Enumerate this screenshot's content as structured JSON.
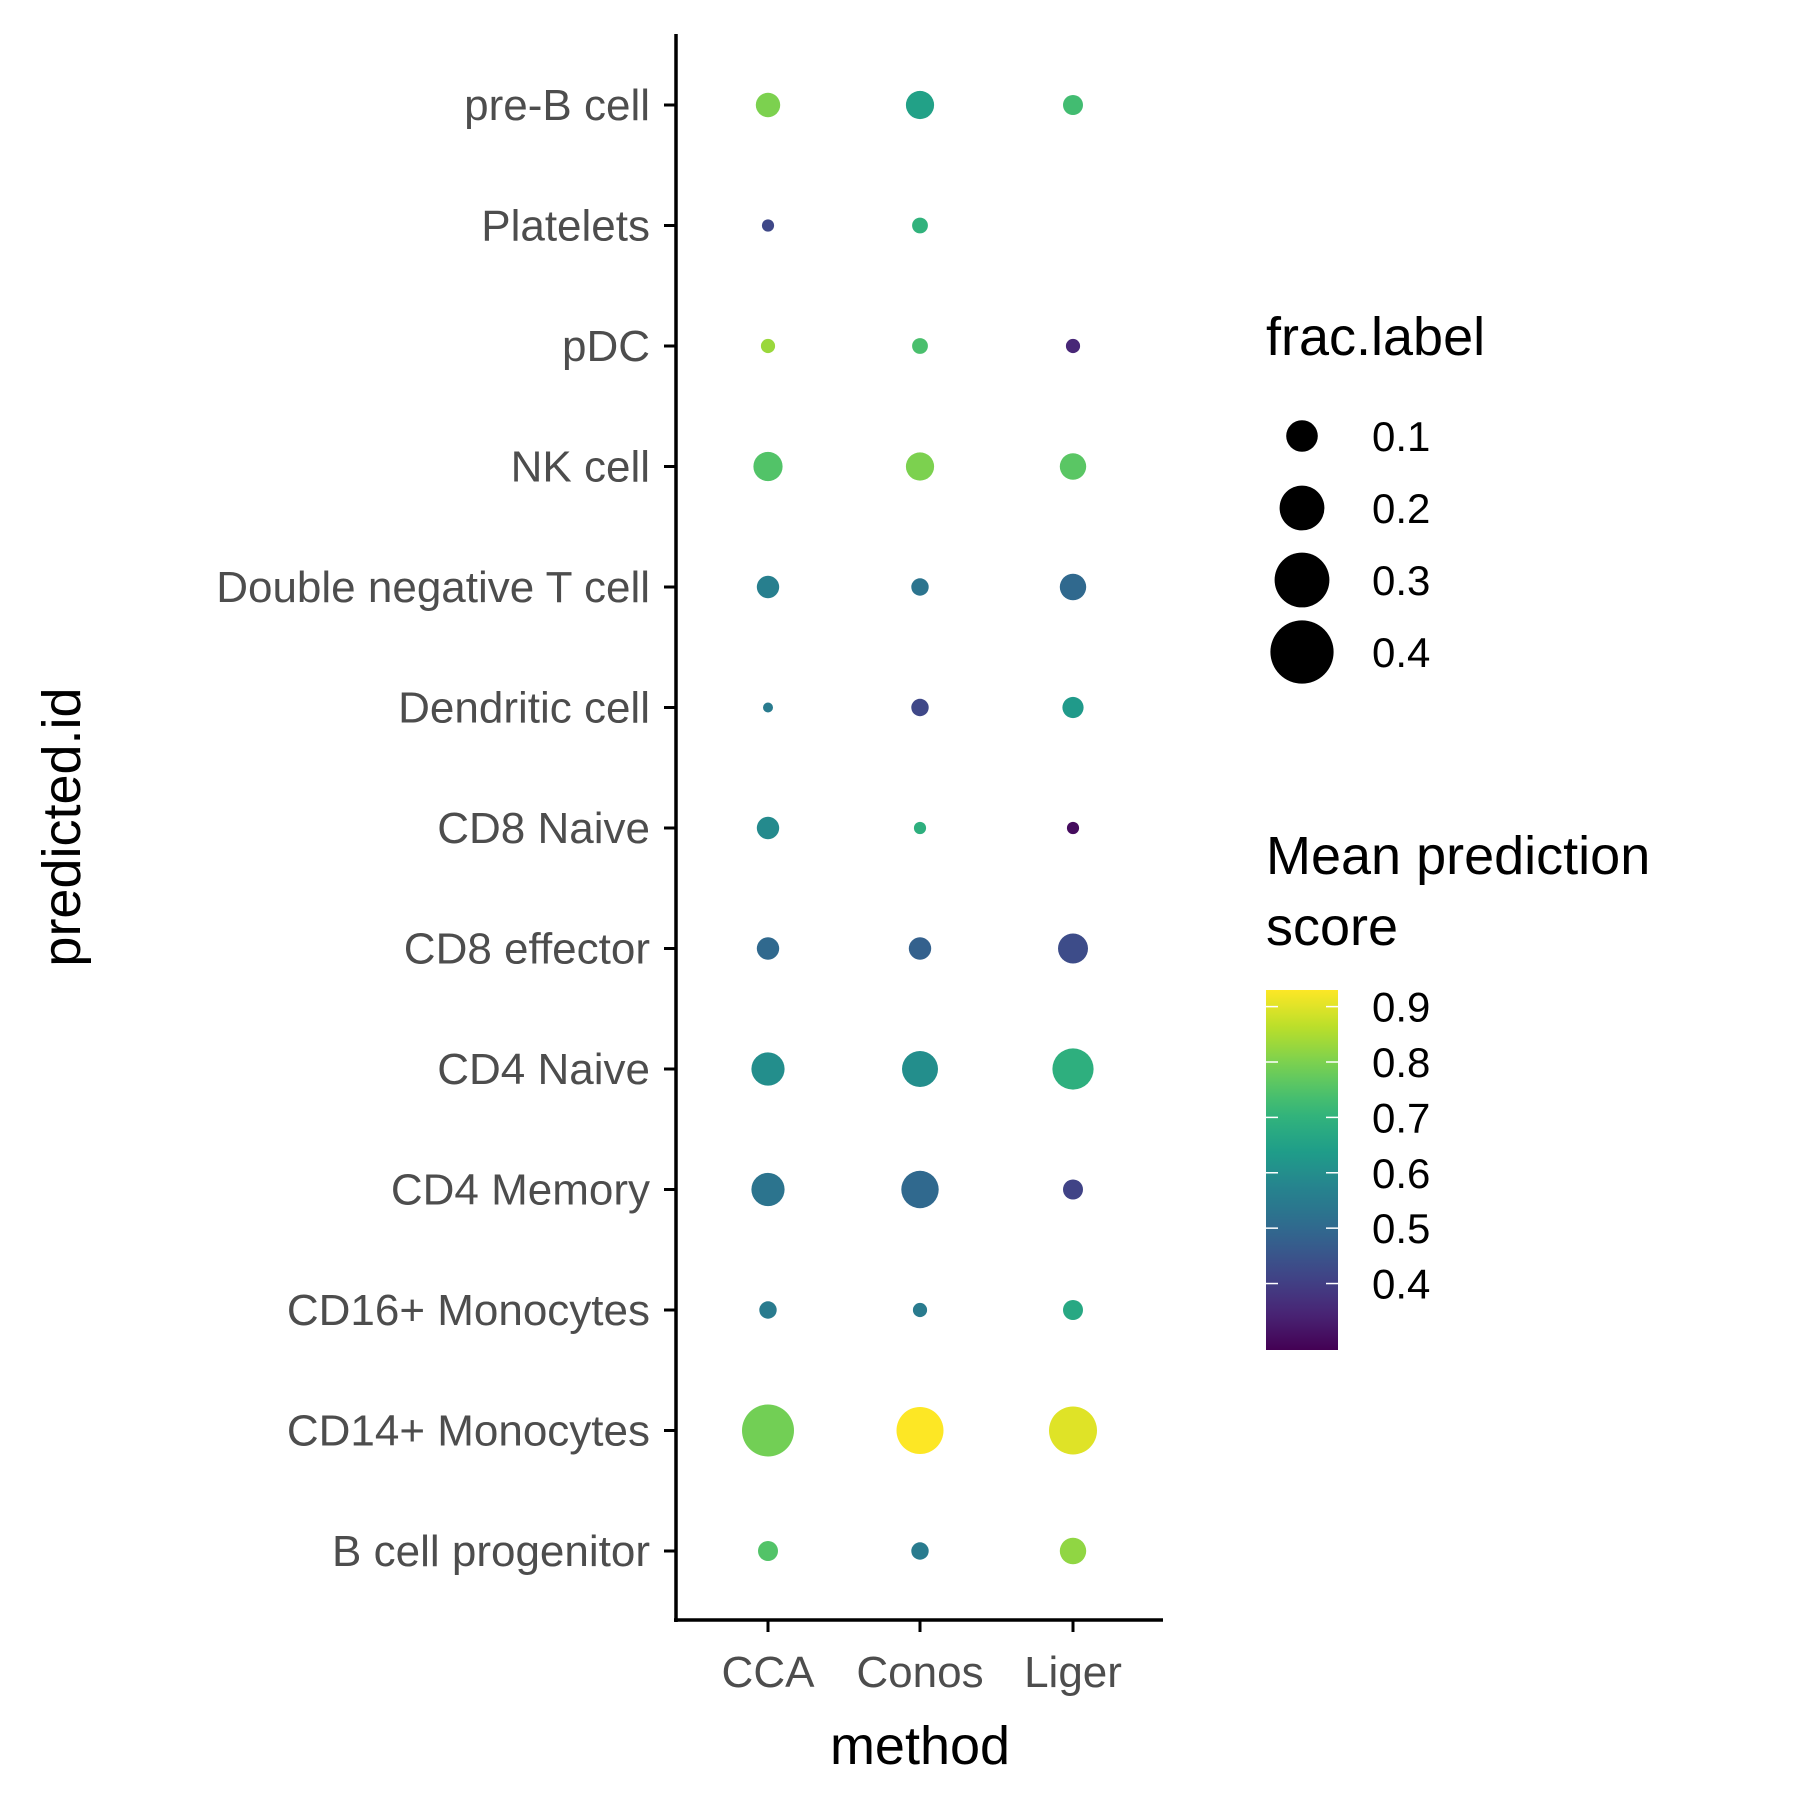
{
  "chart_data": {
    "type": "scatter",
    "subtype": "dot-plot",
    "xlabel": "method",
    "ylabel": "predicted.id",
    "x_categories": [
      "CCA",
      "Conos",
      "Liger"
    ],
    "y_categories": [
      "B cell progenitor",
      "CD14+ Monocytes",
      "CD16+ Monocytes",
      "CD4 Memory",
      "CD4 Naive",
      "CD8 effector",
      "CD8 Naive",
      "Dendritic cell",
      "Double negative T cell",
      "NK cell",
      "pDC",
      "Platelets",
      "pre-B cell"
    ],
    "points": [
      {
        "method": "CCA",
        "id": "pre-B cell",
        "frac": 0.06,
        "score": 0.8
      },
      {
        "method": "Conos",
        "id": "pre-B cell",
        "frac": 0.08,
        "score": 0.65
      },
      {
        "method": "Liger",
        "id": "pre-B cell",
        "frac": 0.04,
        "score": 0.73
      },
      {
        "method": "CCA",
        "id": "Platelets",
        "frac": 0.015,
        "score": 0.42
      },
      {
        "method": "Conos",
        "id": "Platelets",
        "frac": 0.025,
        "score": 0.7
      },
      {
        "method": "CCA",
        "id": "pDC",
        "frac": 0.02,
        "score": 0.83
      },
      {
        "method": "Conos",
        "id": "pDC",
        "frac": 0.025,
        "score": 0.74
      },
      {
        "method": "Liger",
        "id": "pDC",
        "frac": 0.02,
        "score": 0.35
      },
      {
        "method": "CCA",
        "id": "NK cell",
        "frac": 0.085,
        "score": 0.75
      },
      {
        "method": "Conos",
        "id": "NK cell",
        "frac": 0.08,
        "score": 0.8
      },
      {
        "method": "Liger",
        "id": "NK cell",
        "frac": 0.07,
        "score": 0.76
      },
      {
        "method": "CCA",
        "id": "Double negative T cell",
        "frac": 0.05,
        "score": 0.56
      },
      {
        "method": "Conos",
        "id": "Double negative T cell",
        "frac": 0.03,
        "score": 0.53
      },
      {
        "method": "Liger",
        "id": "Double negative T cell",
        "frac": 0.07,
        "score": 0.5
      },
      {
        "method": "CCA",
        "id": "Dendritic cell",
        "frac": 0.01,
        "score": 0.55
      },
      {
        "method": "Conos",
        "id": "Dendritic cell",
        "frac": 0.03,
        "score": 0.42
      },
      {
        "method": "Liger",
        "id": "Dendritic cell",
        "frac": 0.045,
        "score": 0.63
      },
      {
        "method": "CCA",
        "id": "CD8 Naive",
        "frac": 0.05,
        "score": 0.59
      },
      {
        "method": "Conos",
        "id": "CD8 Naive",
        "frac": 0.015,
        "score": 0.69
      },
      {
        "method": "Liger",
        "id": "CD8 Naive",
        "frac": 0.015,
        "score": 0.3
      },
      {
        "method": "CCA",
        "id": "CD8 effector",
        "frac": 0.05,
        "score": 0.5
      },
      {
        "method": "Conos",
        "id": "CD8 effector",
        "frac": 0.05,
        "score": 0.48
      },
      {
        "method": "Liger",
        "id": "CD8 effector",
        "frac": 0.09,
        "score": 0.43
      },
      {
        "method": "CCA",
        "id": "CD4 Naive",
        "frac": 0.11,
        "score": 0.6
      },
      {
        "method": "Conos",
        "id": "CD4 Naive",
        "frac": 0.13,
        "score": 0.6
      },
      {
        "method": "Liger",
        "id": "CD4 Naive",
        "frac": 0.17,
        "score": 0.69
      },
      {
        "method": "CCA",
        "id": "CD4 Memory",
        "frac": 0.11,
        "score": 0.53
      },
      {
        "method": "Conos",
        "id": "CD4 Memory",
        "frac": 0.14,
        "score": 0.5
      },
      {
        "method": "Liger",
        "id": "CD4 Memory",
        "frac": 0.04,
        "score": 0.41
      },
      {
        "method": "CCA",
        "id": "CD16+ Monocytes",
        "frac": 0.03,
        "score": 0.55
      },
      {
        "method": "Conos",
        "id": "CD16+ Monocytes",
        "frac": 0.02,
        "score": 0.55
      },
      {
        "method": "Liger",
        "id": "CD16+ Monocytes",
        "frac": 0.04,
        "score": 0.67
      },
      {
        "method": "CCA",
        "id": "CD14+ Monocytes",
        "frac": 0.27,
        "score": 0.79
      },
      {
        "method": "Conos",
        "id": "CD14+ Monocytes",
        "frac": 0.22,
        "score": 0.93
      },
      {
        "method": "Liger",
        "id": "CD14+ Monocytes",
        "frac": 0.23,
        "score": 0.9
      },
      {
        "method": "CCA",
        "id": "B cell progenitor",
        "frac": 0.04,
        "score": 0.75
      },
      {
        "method": "Conos",
        "id": "B cell progenitor",
        "frac": 0.03,
        "score": 0.55
      },
      {
        "method": "Liger",
        "id": "B cell progenitor",
        "frac": 0.07,
        "score": 0.82
      }
    ],
    "size_legend": {
      "title": "frac.label",
      "breaks": [
        0.1,
        0.2,
        0.3,
        0.4
      ],
      "labels": [
        "0.1",
        "0.2",
        "0.3",
        "0.4"
      ]
    },
    "color_legend": {
      "title_line1": "Mean prediction",
      "title_line2": "score",
      "limits": [
        0.28,
        0.93
      ],
      "breaks": [
        0.4,
        0.5,
        0.6,
        0.7,
        0.8,
        0.9
      ],
      "labels": [
        "0.4",
        "0.5",
        "0.6",
        "0.7",
        "0.8",
        "0.9"
      ],
      "palette": [
        "#440154",
        "#482878",
        "#3e4a89",
        "#31688e",
        "#26828e",
        "#1f9e89",
        "#35b779",
        "#6ece58",
        "#b5de2b",
        "#fde725"
      ]
    },
    "grid": false,
    "legend_position": "right"
  }
}
